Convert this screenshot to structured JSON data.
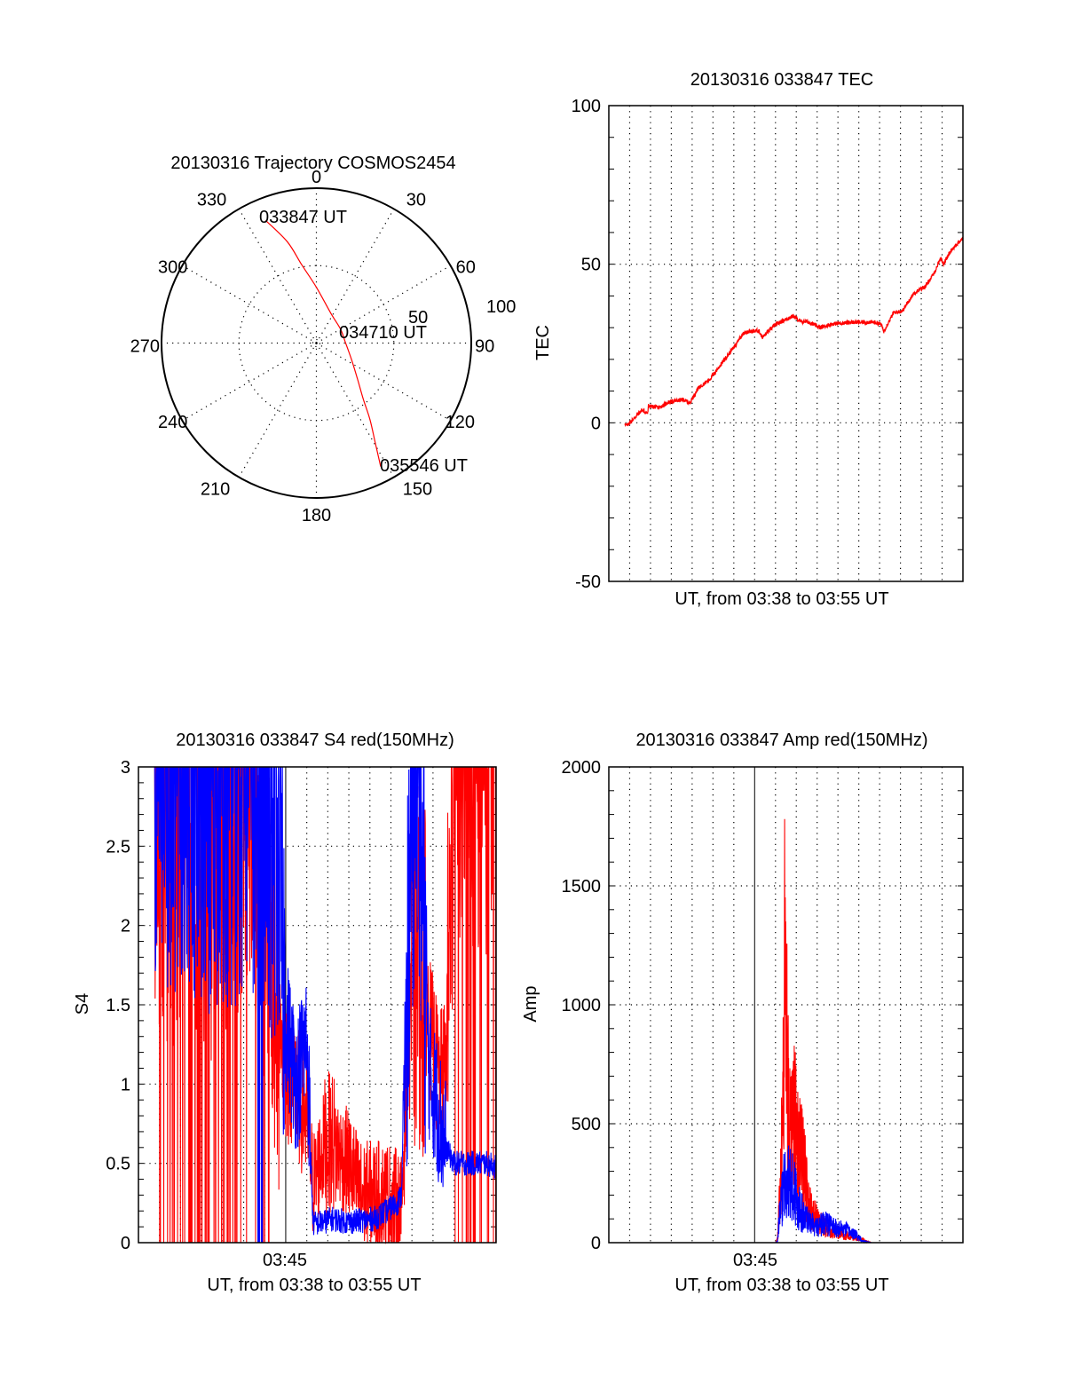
{
  "chart_data": [
    {
      "type": "polar",
      "title": "20130316 Trajectory COSMOS2454",
      "azimuth_labels": [
        "0",
        "30",
        "60",
        "90",
        "120",
        "150",
        "180",
        "210",
        "240",
        "270",
        "300",
        "330"
      ],
      "radial_labels": [
        "50",
        "100"
      ],
      "radial_range": [
        0,
        100
      ],
      "annotations": {
        "start": "033847 UT",
        "middle": "034710 UT",
        "end": "035546 UT"
      },
      "trajectory": {
        "color": "#ff0000",
        "points": [
          [
            337.5,
            85.7
          ],
          [
            344.0,
            68.0
          ],
          [
            349.4,
            51.4
          ],
          [
            0.0,
            36.0
          ],
          [
            26.2,
            21.3
          ],
          [
            60.0,
            18.0
          ],
          [
            87.4,
            18.6
          ],
          [
            115.0,
            25.0
          ],
          [
            131.1,
            35.2
          ],
          [
            140.0,
            47.0
          ],
          [
            145.0,
            60.3
          ],
          [
            149.5,
            75.0
          ],
          [
            152.5,
            89.9
          ]
        ]
      },
      "middle_point": [
        87.4,
        18.6
      ]
    },
    {
      "type": "line",
      "title": "20130316 033847 TEC",
      "xlabel": "UT, from 03:38 to 03:55 UT",
      "ylabel": "TEC",
      "xlim": [
        0,
        17
      ],
      "x_units": "minutes after 03:38 UT",
      "ylim": [
        -50,
        100
      ],
      "yticks": [
        "-50",
        "0",
        "50",
        "100"
      ],
      "grid": true,
      "series": [
        {
          "name": "TEC",
          "color": "#ff0000",
          "x": [
            0.77,
            0.85,
            1.33,
            1.58,
            1.87,
            1.9,
            2.43,
            2.86,
            3.58,
            3.88,
            4.3,
            4.86,
            5.29,
            5.71,
            6.14,
            6.22,
            6.52,
            7.2,
            7.37,
            7.92,
            8.3,
            8.86,
            9.24,
            9.45,
            9.66,
            10.13,
            10.42,
            10.76,
            11.61,
            12.76,
            13.07,
            13.2,
            13.25,
            13.67,
            14.1,
            14.65,
            15.21,
            15.63,
            15.93,
            16.06,
            16.48,
            17.0
          ],
          "y": [
            0.0,
            -1.0,
            2.2,
            4.0,
            3.0,
            5.3,
            4.8,
            6.5,
            7.3,
            6.2,
            11.0,
            13.8,
            17.6,
            21.3,
            25.0,
            26.3,
            28.5,
            29.1,
            26.9,
            30.6,
            32.0,
            33.7,
            31.7,
            32.0,
            31.6,
            30.0,
            30.6,
            31.2,
            31.7,
            31.7,
            31.1,
            28.8,
            29.5,
            34.7,
            35.3,
            40.9,
            43.1,
            47.3,
            52.0,
            50.1,
            54.8,
            58.2
          ]
        }
      ]
    },
    {
      "type": "line",
      "title": "20130316 033847 S4 red(150MHz)",
      "xlabel": "UT, from 03:38 to 03:55 UT",
      "ylabel": "S4",
      "xlim": [
        0,
        17
      ],
      "x_units": "minutes after 03:38 UT",
      "xticks": [
        {
          "x": 7,
          "label": "03:45"
        }
      ],
      "ylim": [
        0,
        3
      ],
      "yticks": [
        "0",
        "0.5",
        "1",
        "1.5",
        "2",
        "2.5",
        "3"
      ],
      "grid": true,
      "series": [
        {
          "name": "red",
          "color": "#ff0000",
          "x": [
            0.77,
            1.5,
            2.5,
            3.5,
            4.5,
            5.5,
            6.1,
            6.6,
            7.0,
            7.5,
            8.0,
            8.3,
            8.8,
            9.2,
            9.6,
            10.0,
            10.6,
            11.2,
            11.8,
            12.3,
            12.5,
            12.9,
            13.3,
            13.8,
            14.3,
            14.6,
            15.0,
            15.5,
            16.0,
            16.5,
            17.0
          ],
          "y": [
            2.6,
            2.4,
            2.6,
            2.3,
            2.6,
            2.7,
            2.0,
            1.6,
            1.1,
            0.95,
            0.8,
            0.35,
            0.6,
            0.65,
            0.55,
            0.5,
            0.3,
            0.3,
            0.3,
            0.25,
            0.2,
            1.6,
            1.8,
            1.4,
            1.0,
            1.1,
            2.9,
            3.0,
            3.0,
            3.0,
            3.0
          ],
          "dropouts": "frequent vertical excursions to 0 before 03:44:30 and after 03:52:30"
        },
        {
          "name": "blue",
          "color": "#0000ff",
          "x": [
            0.77,
            1.5,
            2.5,
            3.5,
            4.5,
            5.5,
            6.1,
            6.6,
            7.0,
            7.5,
            8.0,
            8.3,
            8.8,
            9.2,
            9.6,
            10.0,
            10.6,
            11.2,
            11.8,
            12.3,
            12.5,
            12.9,
            13.3,
            13.8,
            14.3,
            14.6,
            15.0,
            15.5,
            16.0,
            16.5,
            17.0
          ],
          "y": [
            2.8,
            2.8,
            2.7,
            2.6,
            2.7,
            2.6,
            2.4,
            2.5,
            1.4,
            1.0,
            1.3,
            0.12,
            0.13,
            0.15,
            0.14,
            0.13,
            0.14,
            0.15,
            0.2,
            0.25,
            0.3,
            2.2,
            3.0,
            1.1,
            0.8,
            0.6,
            0.5,
            0.5,
            0.5,
            0.5,
            0.48
          ]
        }
      ]
    },
    {
      "type": "line",
      "title": "20130316 033847 Amp red(150MHz)",
      "xlabel": "UT, from 03:38 to 03:55 UT",
      "ylabel": "Amp",
      "xlim": [
        0,
        17
      ],
      "x_units": "minutes after 03:38 UT",
      "xticks": [
        {
          "x": 7,
          "label": "03:45"
        }
      ],
      "ylim": [
        0,
        2000
      ],
      "yticks": [
        "0",
        "500",
        "1000",
        "1500",
        "2000"
      ],
      "grid": true,
      "series": [
        {
          "name": "red",
          "color": "#ff0000",
          "x": [
            0.77,
            7.5,
            8.0,
            8.1,
            8.25,
            8.45,
            8.7,
            8.9,
            9.1,
            9.3,
            9.6,
            10.0,
            10.4,
            10.9,
            11.4,
            11.9,
            12.2,
            12.6,
            17.0
          ],
          "y": [
            0,
            0,
            0,
            20,
            350,
            1510,
            780,
            680,
            560,
            450,
            250,
            120,
            80,
            60,
            40,
            25,
            15,
            0,
            0
          ]
        },
        {
          "name": "blue",
          "color": "#0000ff",
          "x": [
            0.77,
            7.5,
            8.0,
            8.1,
            8.25,
            8.45,
            8.7,
            8.9,
            9.1,
            9.3,
            9.6,
            10.0,
            10.4,
            10.9,
            11.4,
            11.9,
            12.2,
            12.6,
            17.0
          ],
          "y": [
            0,
            0,
            0,
            10,
            250,
            320,
            380,
            280,
            200,
            160,
            120,
            90,
            110,
            80,
            70,
            40,
            10,
            0,
            0
          ]
        }
      ]
    }
  ]
}
